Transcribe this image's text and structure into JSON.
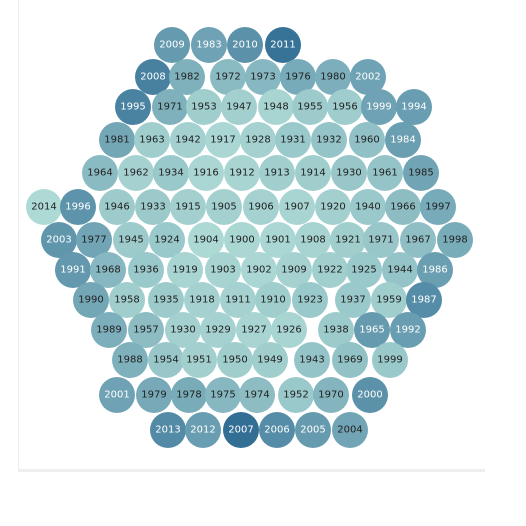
{
  "chart_data": {
    "type": "packed-bubble",
    "title": "",
    "grid": false,
    "legend": "none",
    "color_scale": {
      "low": "#b6e1d9",
      "high": "#2c6891"
    },
    "points": [
      {
        "label": "2009",
        "value": 0.58
      },
      {
        "label": "1983",
        "value": 0.52
      },
      {
        "label": "2010",
        "value": 0.66
      },
      {
        "label": "2011",
        "value": 0.92
      },
      {
        "label": "2008",
        "value": 0.8
      },
      {
        "label": "1982",
        "value": 0.4
      },
      {
        "label": "1972",
        "value": 0.32
      },
      {
        "label": "1973",
        "value": 0.34
      },
      {
        "label": "1976",
        "value": 0.45
      },
      {
        "label": "1980",
        "value": 0.42
      },
      {
        "label": "2002",
        "value": 0.52
      },
      {
        "label": "1995",
        "value": 0.78
      },
      {
        "label": "1971",
        "value": 0.4
      },
      {
        "label": "1953",
        "value": 0.16
      },
      {
        "label": "1947",
        "value": 0.14
      },
      {
        "label": "1948",
        "value": 0.1
      },
      {
        "label": "1955",
        "value": 0.18
      },
      {
        "label": "1956",
        "value": 0.17
      },
      {
        "label": "1999",
        "value": 0.52
      },
      {
        "label": "1994",
        "value": 0.56
      },
      {
        "label": "1981",
        "value": 0.48
      },
      {
        "label": "1963",
        "value": 0.16
      },
      {
        "label": "1942",
        "value": 0.13
      },
      {
        "label": "1917",
        "value": 0.09
      },
      {
        "label": "1928",
        "value": 0.12
      },
      {
        "label": "1931",
        "value": 0.2
      },
      {
        "label": "1932",
        "value": 0.24
      },
      {
        "label": "1960",
        "value": 0.27
      },
      {
        "label": "1984",
        "value": 0.55
      },
      {
        "label": "1964",
        "value": 0.32
      },
      {
        "label": "1962",
        "value": 0.12
      },
      {
        "label": "1934",
        "value": 0.2
      },
      {
        "label": "1916",
        "value": 0.09
      },
      {
        "label": "1912",
        "value": 0.1
      },
      {
        "label": "1913",
        "value": 0.15
      },
      {
        "label": "1914",
        "value": 0.16
      },
      {
        "label": "1930",
        "value": 0.22
      },
      {
        "label": "1961",
        "value": 0.24
      },
      {
        "label": "1985",
        "value": 0.5
      },
      {
        "label": "2014",
        "value": 0.06
      },
      {
        "label": "1996",
        "value": 0.64
      },
      {
        "label": "1946",
        "value": 0.18
      },
      {
        "label": "1933",
        "value": 0.19
      },
      {
        "label": "1915",
        "value": 0.14
      },
      {
        "label": "1905",
        "value": 0.13
      },
      {
        "label": "1906",
        "value": 0.12
      },
      {
        "label": "1907",
        "value": 0.1
      },
      {
        "label": "1920",
        "value": 0.14
      },
      {
        "label": "1940",
        "value": 0.2
      },
      {
        "label": "1966",
        "value": 0.3
      },
      {
        "label": "1997",
        "value": 0.45
      },
      {
        "label": "2003",
        "value": 0.62
      },
      {
        "label": "1977",
        "value": 0.5
      },
      {
        "label": "1945",
        "value": 0.18
      },
      {
        "label": "1924",
        "value": 0.2
      },
      {
        "label": "1904",
        "value": 0.07
      },
      {
        "label": "1900",
        "value": 0.08
      },
      {
        "label": "1901",
        "value": 0.09
      },
      {
        "label": "1908",
        "value": 0.11
      },
      {
        "label": "1921",
        "value": 0.16
      },
      {
        "label": "1971",
        "value": 0.22
      },
      {
        "label": "1967",
        "value": 0.28
      },
      {
        "label": "1998",
        "value": 0.44
      },
      {
        "label": "1991",
        "value": 0.6
      },
      {
        "label": "1968",
        "value": 0.34
      },
      {
        "label": "1936",
        "value": 0.2
      },
      {
        "label": "1919",
        "value": 0.1
      },
      {
        "label": "1903",
        "value": 0.11
      },
      {
        "label": "1902",
        "value": 0.09
      },
      {
        "label": "1909",
        "value": 0.12
      },
      {
        "label": "1922",
        "value": 0.15
      },
      {
        "label": "1925",
        "value": 0.2
      },
      {
        "label": "1944",
        "value": 0.24
      },
      {
        "label": "1986",
        "value": 0.55
      },
      {
        "label": "1990",
        "value": 0.48
      },
      {
        "label": "1958",
        "value": 0.16
      },
      {
        "label": "1935",
        "value": 0.18
      },
      {
        "label": "1918",
        "value": 0.12
      },
      {
        "label": "1911",
        "value": 0.12
      },
      {
        "label": "1910",
        "value": 0.16
      },
      {
        "label": "1923",
        "value": 0.2
      },
      {
        "label": "1937",
        "value": 0.2
      },
      {
        "label": "1959",
        "value": 0.16
      },
      {
        "label": "1987",
        "value": 0.7
      },
      {
        "label": "1989",
        "value": 0.42
      },
      {
        "label": "1957",
        "value": 0.3
      },
      {
        "label": "1930",
        "value": 0.13
      },
      {
        "label": "1929",
        "value": 0.12
      },
      {
        "label": "1927",
        "value": 0.1
      },
      {
        "label": "1926",
        "value": 0.1
      },
      {
        "label": "1938",
        "value": 0.18
      },
      {
        "label": "1965",
        "value": 0.58
      },
      {
        "label": "1992",
        "value": 0.56
      },
      {
        "label": "1988",
        "value": 0.4
      },
      {
        "label": "1954",
        "value": 0.22
      },
      {
        "label": "1951",
        "value": 0.14
      },
      {
        "label": "1950",
        "value": 0.16
      },
      {
        "label": "1949",
        "value": 0.16
      },
      {
        "label": "1943",
        "value": 0.24
      },
      {
        "label": "1969",
        "value": 0.26
      },
      {
        "label": "1999",
        "value": 0.2
      },
      {
        "label": "2001",
        "value": 0.52
      },
      {
        "label": "1979",
        "value": 0.46
      },
      {
        "label": "1978",
        "value": 0.44
      },
      {
        "label": "1975",
        "value": 0.34
      },
      {
        "label": "1974",
        "value": 0.3
      },
      {
        "label": "1952",
        "value": 0.2
      },
      {
        "label": "1970",
        "value": 0.36
      },
      {
        "label": "2000",
        "value": 0.66
      },
      {
        "label": "2013",
        "value": 0.72
      },
      {
        "label": "2012",
        "value": 0.56
      },
      {
        "label": "2007",
        "value": 0.95
      },
      {
        "label": "2006",
        "value": 0.7
      },
      {
        "label": "2005",
        "value": 0.58
      },
      {
        "label": "2004",
        "value": 0.5
      }
    ]
  }
}
